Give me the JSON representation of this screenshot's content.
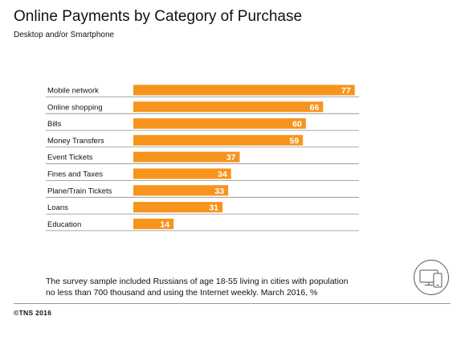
{
  "header": {
    "title": "Online Payments by Category of Purchase",
    "subtitle": "Desktop and/or Smartphone"
  },
  "footer": {
    "note": "The survey sample included Russians of age 18-55 living in cities with population no less than 700 thousand and using the Internet weekly. March 2016, %",
    "copyright": "©TNS 2016"
  },
  "icons": {
    "device": "desktop-smartphone-icon"
  },
  "colors": {
    "bar": "#f7941d",
    "row_line": "#8c8c8c",
    "bar_label": "#ffffff"
  },
  "chart_data": {
    "type": "bar",
    "orientation": "horizontal",
    "categories": [
      "Mobile network",
      "Online shopping",
      "Bills",
      "Money Transfers",
      "Event Tickets",
      "Fines and Taxes",
      "Plane/Train Tickets",
      "Loans",
      "Education"
    ],
    "values": [
      77,
      66,
      60,
      59,
      37,
      34,
      33,
      31,
      14
    ],
    "title": "Online Payments by Category of Purchase",
    "subtitle": "Desktop and/or Smartphone",
    "xlabel": "",
    "ylabel": "",
    "xlim": [
      0,
      100
    ],
    "grid": false,
    "legend": "none"
  }
}
